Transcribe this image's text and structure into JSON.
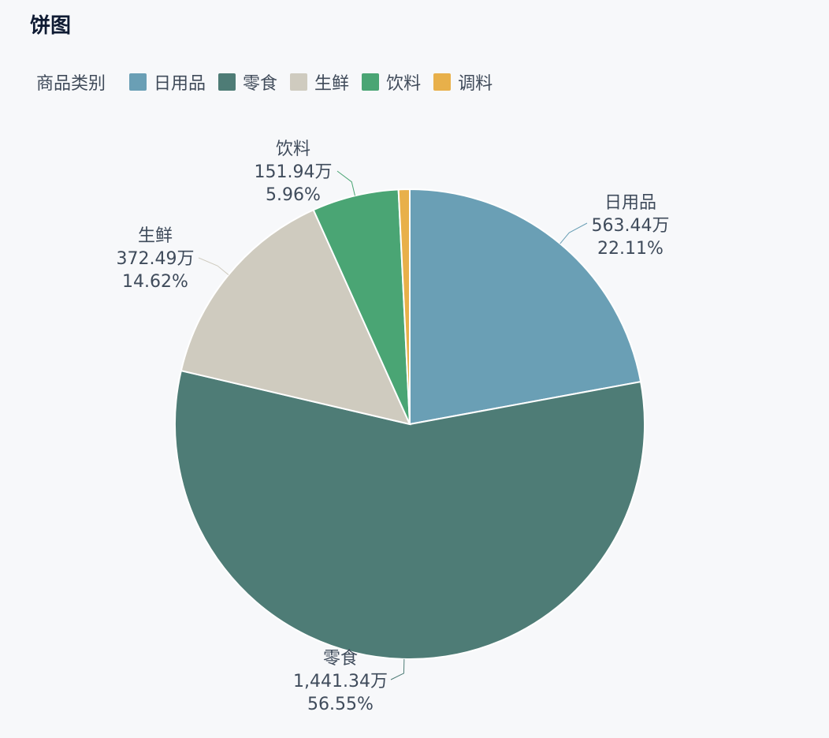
{
  "page": {
    "title": "饼图"
  },
  "chart_data": {
    "type": "pie",
    "title": "饼图",
    "legend_title": "商品类别",
    "legend_position": "top-left",
    "unit": "万",
    "slices": [
      {
        "name": "日用品",
        "value": 563.44,
        "value_label": "563.44万",
        "percent_label": "22.11%",
        "color": "#6a9fb5"
      },
      {
        "name": "零食",
        "value": 1441.34,
        "value_label": "1,441.34万",
        "percent_label": "56.55%",
        "color": "#4e7c76"
      },
      {
        "name": "生鲜",
        "value": 372.49,
        "value_label": "372.49万",
        "percent_label": "14.62%",
        "color": "#cfcbbf"
      },
      {
        "name": "饮料",
        "value": 151.94,
        "value_label": "151.94万",
        "percent_label": "5.96%",
        "color": "#4aa574"
      },
      {
        "name": "调料",
        "value": 19.56,
        "color": "#e8b04a"
      }
    ]
  }
}
